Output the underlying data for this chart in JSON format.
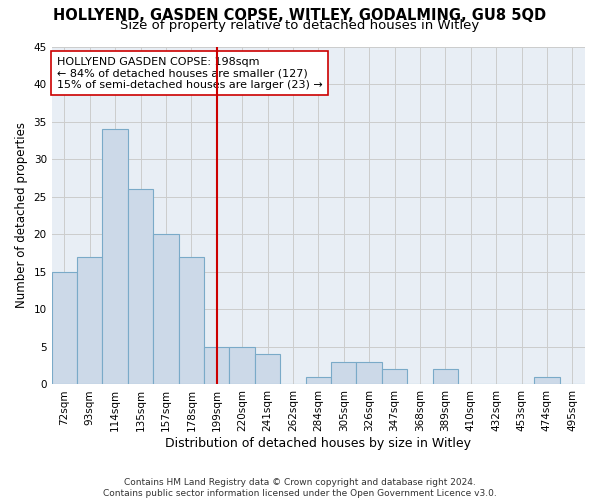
{
  "title": "HOLLYEND, GASDEN COPSE, WITLEY, GODALMING, GU8 5QD",
  "subtitle": "Size of property relative to detached houses in Witley",
  "xlabel": "Distribution of detached houses by size in Witley",
  "ylabel": "Number of detached properties",
  "bins": [
    "72sqm",
    "93sqm",
    "114sqm",
    "135sqm",
    "157sqm",
    "178sqm",
    "199sqm",
    "220sqm",
    "241sqm",
    "262sqm",
    "284sqm",
    "305sqm",
    "326sqm",
    "347sqm",
    "368sqm",
    "389sqm",
    "410sqm",
    "432sqm",
    "453sqm",
    "474sqm",
    "495sqm"
  ],
  "values": [
    15,
    17,
    34,
    26,
    20,
    17,
    5,
    5,
    4,
    0,
    1,
    3,
    3,
    2,
    0,
    2,
    0,
    0,
    0,
    1,
    0
  ],
  "bar_color": "#ccd9e8",
  "bar_edge_color": "#7aaac8",
  "vline_x_index": 6,
  "vline_color": "#cc0000",
  "annotation_line1": "HOLLYEND GASDEN COPSE: 198sqm",
  "annotation_line2": "← 84% of detached houses are smaller (127)",
  "annotation_line3": "15% of semi-detached houses are larger (23) →",
  "annotation_box_color": "#ffffff",
  "annotation_box_edge": "#cc0000",
  "ylim": [
    0,
    45
  ],
  "yticks": [
    0,
    5,
    10,
    15,
    20,
    25,
    30,
    35,
    40,
    45
  ],
  "grid_color": "#cccccc",
  "bg_color": "#e8eef5",
  "footnote": "Contains HM Land Registry data © Crown copyright and database right 2024.\nContains public sector information licensed under the Open Government Licence v3.0.",
  "title_fontsize": 10.5,
  "subtitle_fontsize": 9.5,
  "xlabel_fontsize": 9,
  "ylabel_fontsize": 8.5,
  "tick_fontsize": 7.5,
  "annotation_fontsize": 8,
  "footnote_fontsize": 6.5
}
